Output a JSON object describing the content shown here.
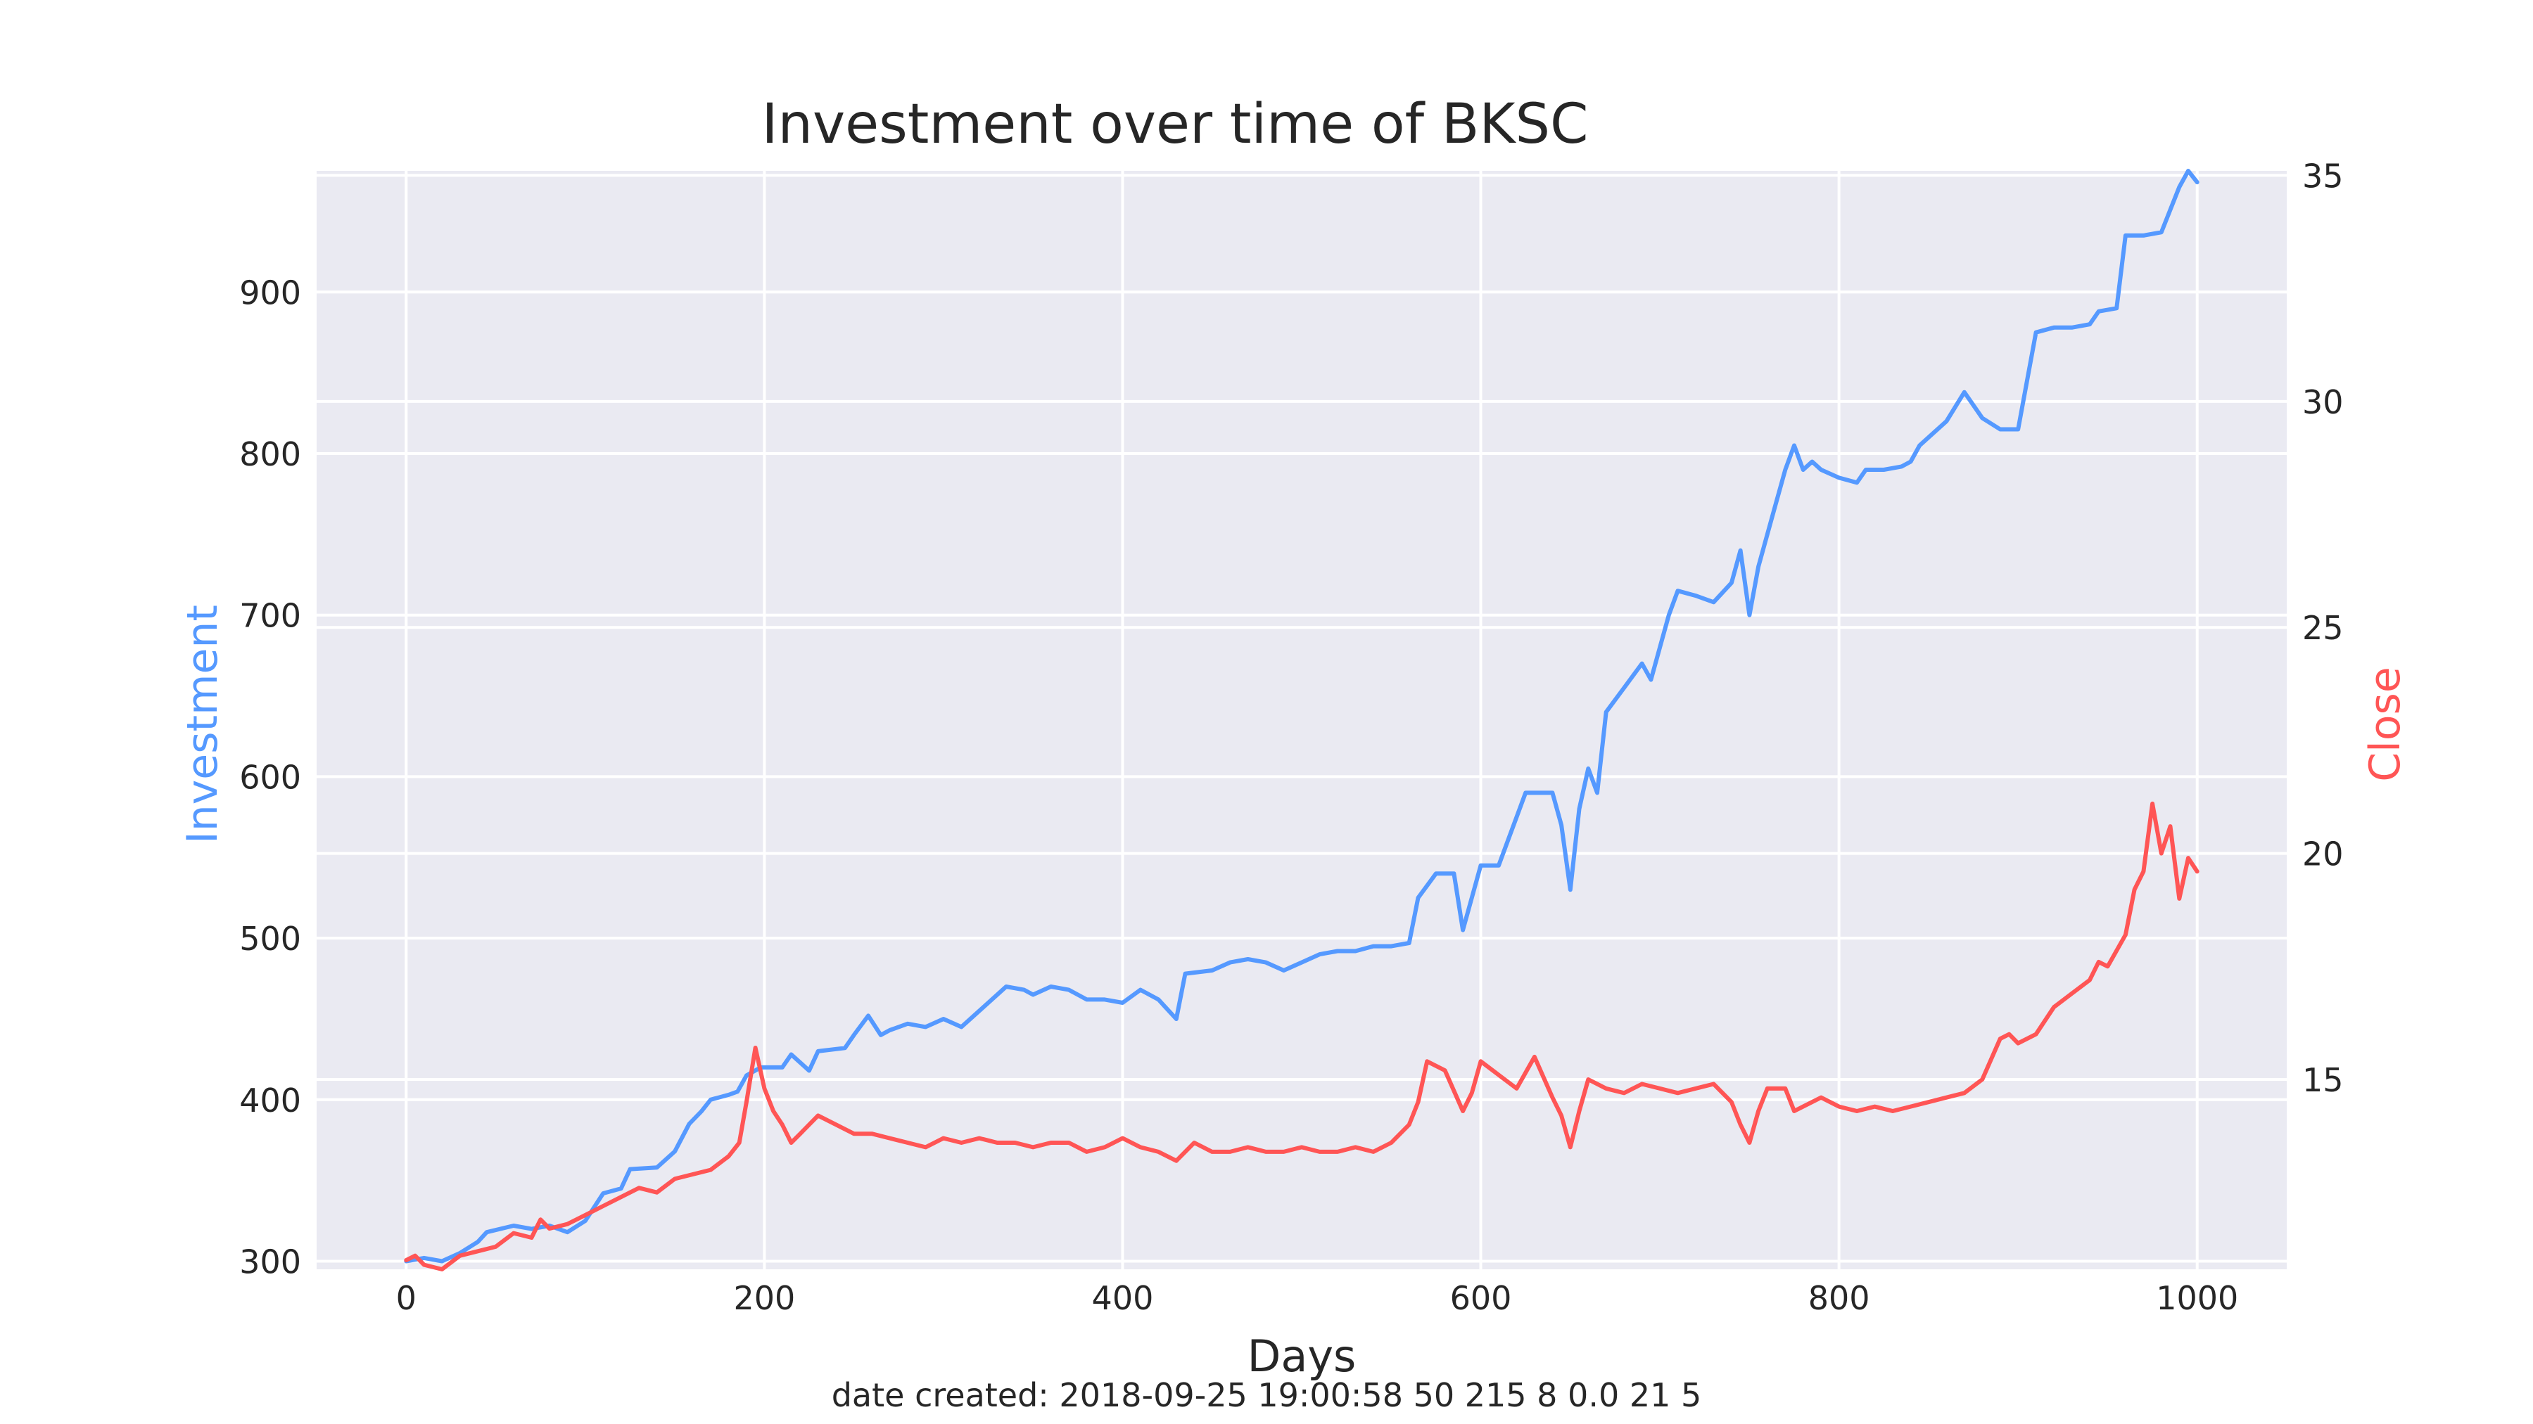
{
  "chart_data": {
    "type": "line",
    "title": "Investment over time of BKSC",
    "xlabel": "Days",
    "ylabel_left": "Investment",
    "ylabel_right": "Close",
    "footer": "date created: 2018-09-25 19:00:58 50 215 8 0.0 21 5",
    "xlim": [
      -50,
      1050
    ],
    "ylim_left": [
      295,
      975
    ],
    "ylim_right": [
      10.8,
      35.1
    ],
    "x_ticks": [
      "0",
      "200",
      "400",
      "600",
      "800",
      "1000"
    ],
    "y_left_ticks": [
      "300",
      "400",
      "500",
      "600",
      "700",
      "800",
      "900"
    ],
    "y_right_ticks": [
      "15",
      "20",
      "25",
      "30",
      "35"
    ],
    "grid": true,
    "series": [
      {
        "name": "Investment",
        "axis": "left",
        "color": "#5599ff",
        "points": [
          [
            0,
            300
          ],
          [
            10,
            302
          ],
          [
            20,
            300
          ],
          [
            30,
            305
          ],
          [
            40,
            312
          ],
          [
            45,
            318
          ],
          [
            60,
            322
          ],
          [
            70,
            320
          ],
          [
            80,
            322
          ],
          [
            90,
            318
          ],
          [
            100,
            325
          ],
          [
            110,
            342
          ],
          [
            120,
            345
          ],
          [
            125,
            357
          ],
          [
            140,
            358
          ],
          [
            150,
            368
          ],
          [
            158,
            385
          ],
          [
            165,
            393
          ],
          [
            170,
            400
          ],
          [
            180,
            403
          ],
          [
            185,
            405
          ],
          [
            190,
            415
          ],
          [
            198,
            420
          ],
          [
            210,
            420
          ],
          [
            215,
            428
          ],
          [
            225,
            418
          ],
          [
            230,
            430
          ],
          [
            245,
            432
          ],
          [
            250,
            440
          ],
          [
            258,
            452
          ],
          [
            265,
            440
          ],
          [
            270,
            443
          ],
          [
            280,
            447
          ],
          [
            290,
            445
          ],
          [
            300,
            450
          ],
          [
            310,
            445
          ],
          [
            320,
            455
          ],
          [
            330,
            465
          ],
          [
            335,
            470
          ],
          [
            345,
            468
          ],
          [
            350,
            465
          ],
          [
            360,
            470
          ],
          [
            370,
            468
          ],
          [
            380,
            462
          ],
          [
            390,
            462
          ],
          [
            400,
            460
          ],
          [
            410,
            468
          ],
          [
            420,
            462
          ],
          [
            430,
            450
          ],
          [
            435,
            478
          ],
          [
            450,
            480
          ],
          [
            460,
            485
          ],
          [
            470,
            487
          ],
          [
            480,
            485
          ],
          [
            490,
            480
          ],
          [
            500,
            485
          ],
          [
            510,
            490
          ],
          [
            520,
            492
          ],
          [
            530,
            492
          ],
          [
            540,
            495
          ],
          [
            550,
            495
          ],
          [
            560,
            497
          ],
          [
            565,
            525
          ],
          [
            575,
            540
          ],
          [
            585,
            540
          ],
          [
            590,
            505
          ],
          [
            600,
            545
          ],
          [
            610,
            545
          ],
          [
            615,
            560
          ],
          [
            620,
            575
          ],
          [
            625,
            590
          ],
          [
            640,
            590
          ],
          [
            645,
            570
          ],
          [
            650,
            530
          ],
          [
            655,
            580
          ],
          [
            660,
            605
          ],
          [
            665,
            590
          ],
          [
            670,
            640
          ],
          [
            680,
            655
          ],
          [
            690,
            670
          ],
          [
            695,
            660
          ],
          [
            700,
            680
          ],
          [
            705,
            700
          ],
          [
            710,
            715
          ],
          [
            720,
            712
          ],
          [
            730,
            708
          ],
          [
            740,
            720
          ],
          [
            745,
            740
          ],
          [
            750,
            700
          ],
          [
            755,
            730
          ],
          [
            760,
            750
          ],
          [
            765,
            770
          ],
          [
            770,
            790
          ],
          [
            775,
            805
          ],
          [
            780,
            790
          ],
          [
            785,
            795
          ],
          [
            790,
            790
          ],
          [
            800,
            785
          ],
          [
            810,
            782
          ],
          [
            815,
            790
          ],
          [
            825,
            790
          ],
          [
            835,
            792
          ],
          [
            840,
            795
          ],
          [
            845,
            805
          ],
          [
            850,
            810
          ],
          [
            860,
            820
          ],
          [
            870,
            838
          ],
          [
            880,
            822
          ],
          [
            890,
            815
          ],
          [
            900,
            815
          ],
          [
            905,
            845
          ],
          [
            910,
            875
          ],
          [
            920,
            878
          ],
          [
            930,
            878
          ],
          [
            940,
            880
          ],
          [
            945,
            888
          ],
          [
            955,
            890
          ],
          [
            960,
            935
          ],
          [
            970,
            935
          ],
          [
            980,
            937
          ],
          [
            990,
            965
          ],
          [
            995,
            975
          ],
          [
            1000,
            968
          ]
        ]
      },
      {
        "name": "Close",
        "axis": "right",
        "color": "#ff5555",
        "points": [
          [
            0,
            11.0
          ],
          [
            5,
            11.1
          ],
          [
            10,
            10.9
          ],
          [
            20,
            10.8
          ],
          [
            30,
            11.1
          ],
          [
            40,
            11.2
          ],
          [
            50,
            11.3
          ],
          [
            60,
            11.6
          ],
          [
            70,
            11.5
          ],
          [
            75,
            11.9
          ],
          [
            80,
            11.7
          ],
          [
            90,
            11.8
          ],
          [
            100,
            12.0
          ],
          [
            110,
            12.2
          ],
          [
            120,
            12.4
          ],
          [
            130,
            12.6
          ],
          [
            140,
            12.5
          ],
          [
            150,
            12.8
          ],
          [
            160,
            12.9
          ],
          [
            170,
            13.0
          ],
          [
            180,
            13.3
          ],
          [
            186,
            13.6
          ],
          [
            190,
            14.5
          ],
          [
            195,
            15.7
          ],
          [
            200,
            14.8
          ],
          [
            205,
            14.3
          ],
          [
            210,
            14.0
          ],
          [
            215,
            13.6
          ],
          [
            220,
            13.8
          ],
          [
            230,
            14.2
          ],
          [
            240,
            14.0
          ],
          [
            250,
            13.8
          ],
          [
            260,
            13.8
          ],
          [
            270,
            13.7
          ],
          [
            280,
            13.6
          ],
          [
            290,
            13.5
          ],
          [
            300,
            13.7
          ],
          [
            310,
            13.6
          ],
          [
            320,
            13.7
          ],
          [
            330,
            13.6
          ],
          [
            340,
            13.6
          ],
          [
            350,
            13.5
          ],
          [
            360,
            13.6
          ],
          [
            370,
            13.6
          ],
          [
            380,
            13.4
          ],
          [
            390,
            13.5
          ],
          [
            400,
            13.7
          ],
          [
            410,
            13.5
          ],
          [
            420,
            13.4
          ],
          [
            430,
            13.2
          ],
          [
            440,
            13.6
          ],
          [
            450,
            13.4
          ],
          [
            460,
            13.4
          ],
          [
            470,
            13.5
          ],
          [
            480,
            13.4
          ],
          [
            490,
            13.4
          ],
          [
            500,
            13.5
          ],
          [
            510,
            13.4
          ],
          [
            520,
            13.4
          ],
          [
            530,
            13.5
          ],
          [
            540,
            13.4
          ],
          [
            550,
            13.6
          ],
          [
            560,
            14.0
          ],
          [
            565,
            14.5
          ],
          [
            570,
            15.4
          ],
          [
            580,
            15.2
          ],
          [
            590,
            14.3
          ],
          [
            595,
            14.7
          ],
          [
            600,
            15.4
          ],
          [
            610,
            15.1
          ],
          [
            620,
            14.8
          ],
          [
            630,
            15.5
          ],
          [
            640,
            14.6
          ],
          [
            645,
            14.2
          ],
          [
            650,
            13.5
          ],
          [
            655,
            14.3
          ],
          [
            660,
            15.0
          ],
          [
            670,
            14.8
          ],
          [
            680,
            14.7
          ],
          [
            690,
            14.9
          ],
          [
            700,
            14.8
          ],
          [
            710,
            14.7
          ],
          [
            720,
            14.8
          ],
          [
            730,
            14.9
          ],
          [
            740,
            14.5
          ],
          [
            745,
            14.0
          ],
          [
            750,
            13.6
          ],
          [
            755,
            14.3
          ],
          [
            760,
            14.8
          ],
          [
            770,
            14.8
          ],
          [
            775,
            14.3
          ],
          [
            780,
            14.4
          ],
          [
            790,
            14.6
          ],
          [
            800,
            14.4
          ],
          [
            810,
            14.3
          ],
          [
            820,
            14.4
          ],
          [
            830,
            14.3
          ],
          [
            840,
            14.4
          ],
          [
            850,
            14.5
          ],
          [
            860,
            14.6
          ],
          [
            870,
            14.7
          ],
          [
            880,
            15.0
          ],
          [
            890,
            15.9
          ],
          [
            895,
            16.0
          ],
          [
            900,
            15.8
          ],
          [
            910,
            16.0
          ],
          [
            920,
            16.6
          ],
          [
            930,
            16.9
          ],
          [
            940,
            17.2
          ],
          [
            945,
            17.6
          ],
          [
            950,
            17.5
          ],
          [
            960,
            18.2
          ],
          [
            965,
            19.2
          ],
          [
            970,
            19.6
          ],
          [
            975,
            21.1
          ],
          [
            980,
            20.0
          ],
          [
            985,
            20.6
          ],
          [
            990,
            19.0
          ],
          [
            995,
            19.9
          ],
          [
            1000,
            19.6
          ]
        ]
      }
    ]
  }
}
